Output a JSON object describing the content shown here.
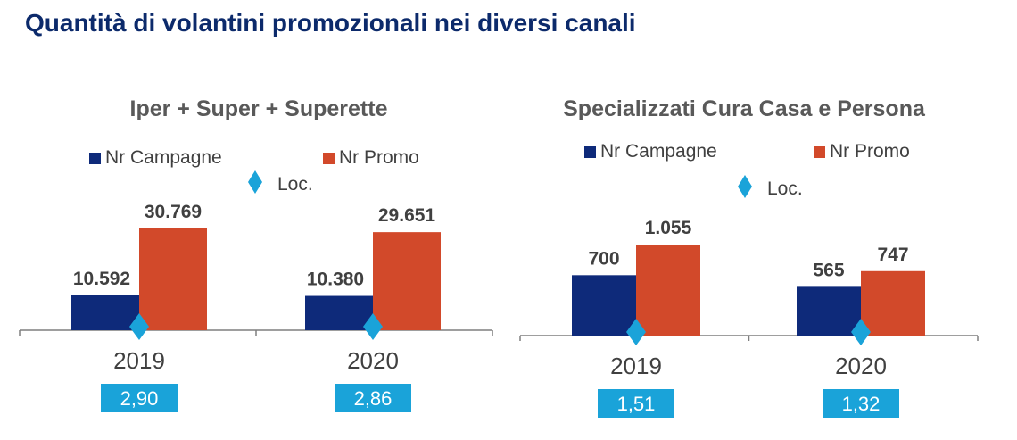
{
  "page": {
    "title": "Quantità di volantini promozionali nei diversi canali"
  },
  "colors": {
    "campagne": "#0e2a7a",
    "promo": "#d2492a",
    "loc": "#1aa3d9",
    "axis": "#7f7f7f"
  },
  "chart_data": [
    {
      "type": "bar",
      "title": "Iper + Super + Superette",
      "categories": [
        "2019",
        "2020"
      ],
      "series": [
        {
          "name": "Nr Campagne",
          "values": [
            10592,
            10380
          ],
          "labels": [
            "10.592",
            "10.380"
          ]
        },
        {
          "name": "Nr Promo",
          "values": [
            30769,
            29651
          ],
          "labels": [
            "30.769",
            "29.651"
          ]
        },
        {
          "name": "Loc.",
          "values": [
            2.9,
            2.86
          ],
          "labels": [
            "2,90",
            "2,86"
          ],
          "marker": "diamond"
        }
      ],
      "legend": "top"
    },
    {
      "type": "bar",
      "title": "Specializzati Cura Casa e Persona",
      "categories": [
        "2019",
        "2020"
      ],
      "series": [
        {
          "name": "Nr Campagne",
          "values": [
            700,
            565
          ],
          "labels": [
            "700",
            "565"
          ]
        },
        {
          "name": "Nr Promo",
          "values": [
            1055,
            747
          ],
          "labels": [
            "1.055",
            "747"
          ]
        },
        {
          "name": "Loc.",
          "values": [
            1.51,
            1.32
          ],
          "labels": [
            "1,51",
            "1,32"
          ],
          "marker": "diamond"
        }
      ],
      "legend": "top"
    }
  ]
}
